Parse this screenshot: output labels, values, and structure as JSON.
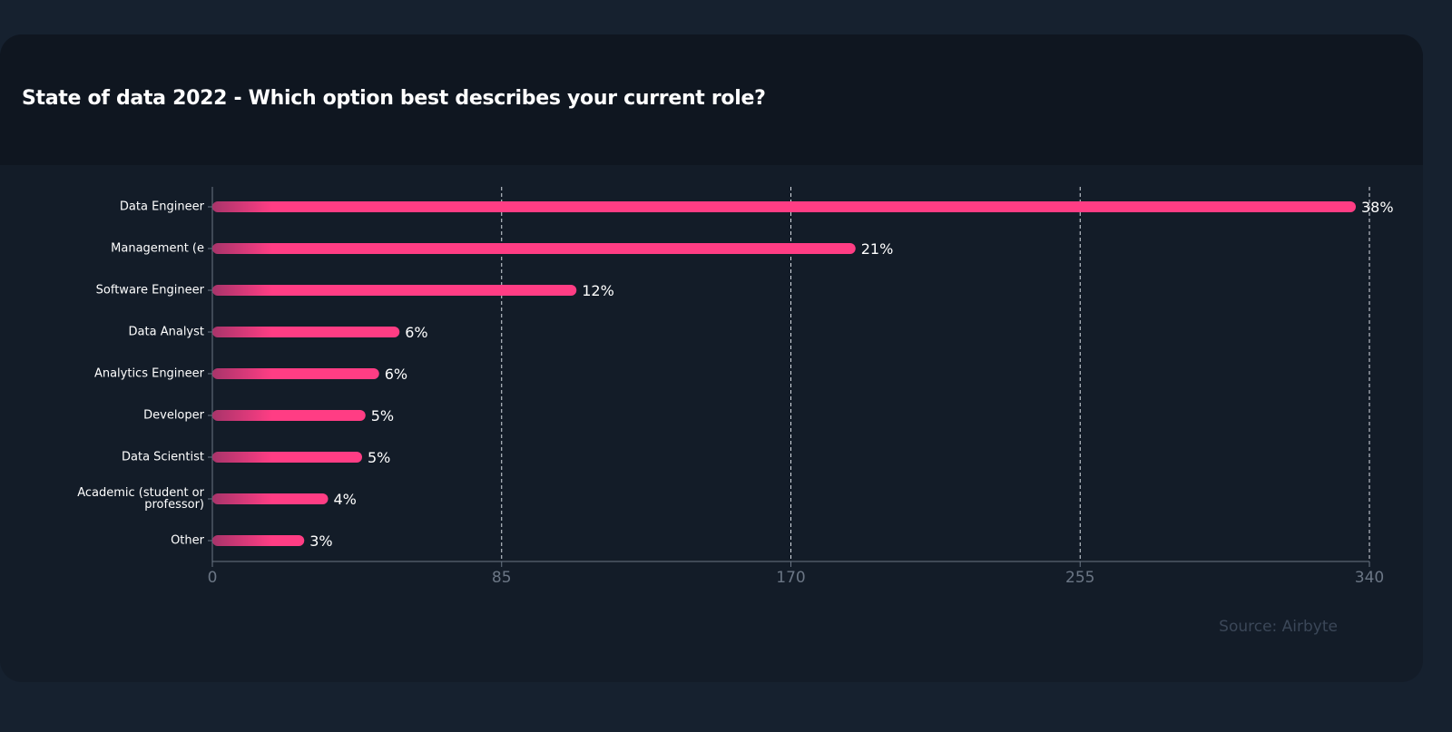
{
  "chart_data": {
    "type": "bar",
    "orientation": "horizontal",
    "title": "State of data 2022 - Which option best describes your current role?",
    "source": "Source: Airbyte",
    "categories": [
      "Data Engineer",
      "Management (e",
      "Software Engineer",
      "Data Analyst",
      "Analytics Engineer",
      "Developer",
      "Data Scientist",
      "Academic (student or professor)",
      "Other"
    ],
    "values": [
      336,
      189,
      107,
      55,
      49,
      45,
      44,
      34,
      27
    ],
    "value_labels": [
      "38%",
      "21%",
      "12%",
      "6%",
      "6%",
      "5%",
      "5%",
      "4%",
      "3%"
    ],
    "color": "#ff3d84",
    "xlim": [
      0,
      340
    ],
    "xticks": [
      0,
      85,
      170,
      255,
      340
    ],
    "grid": true
  }
}
